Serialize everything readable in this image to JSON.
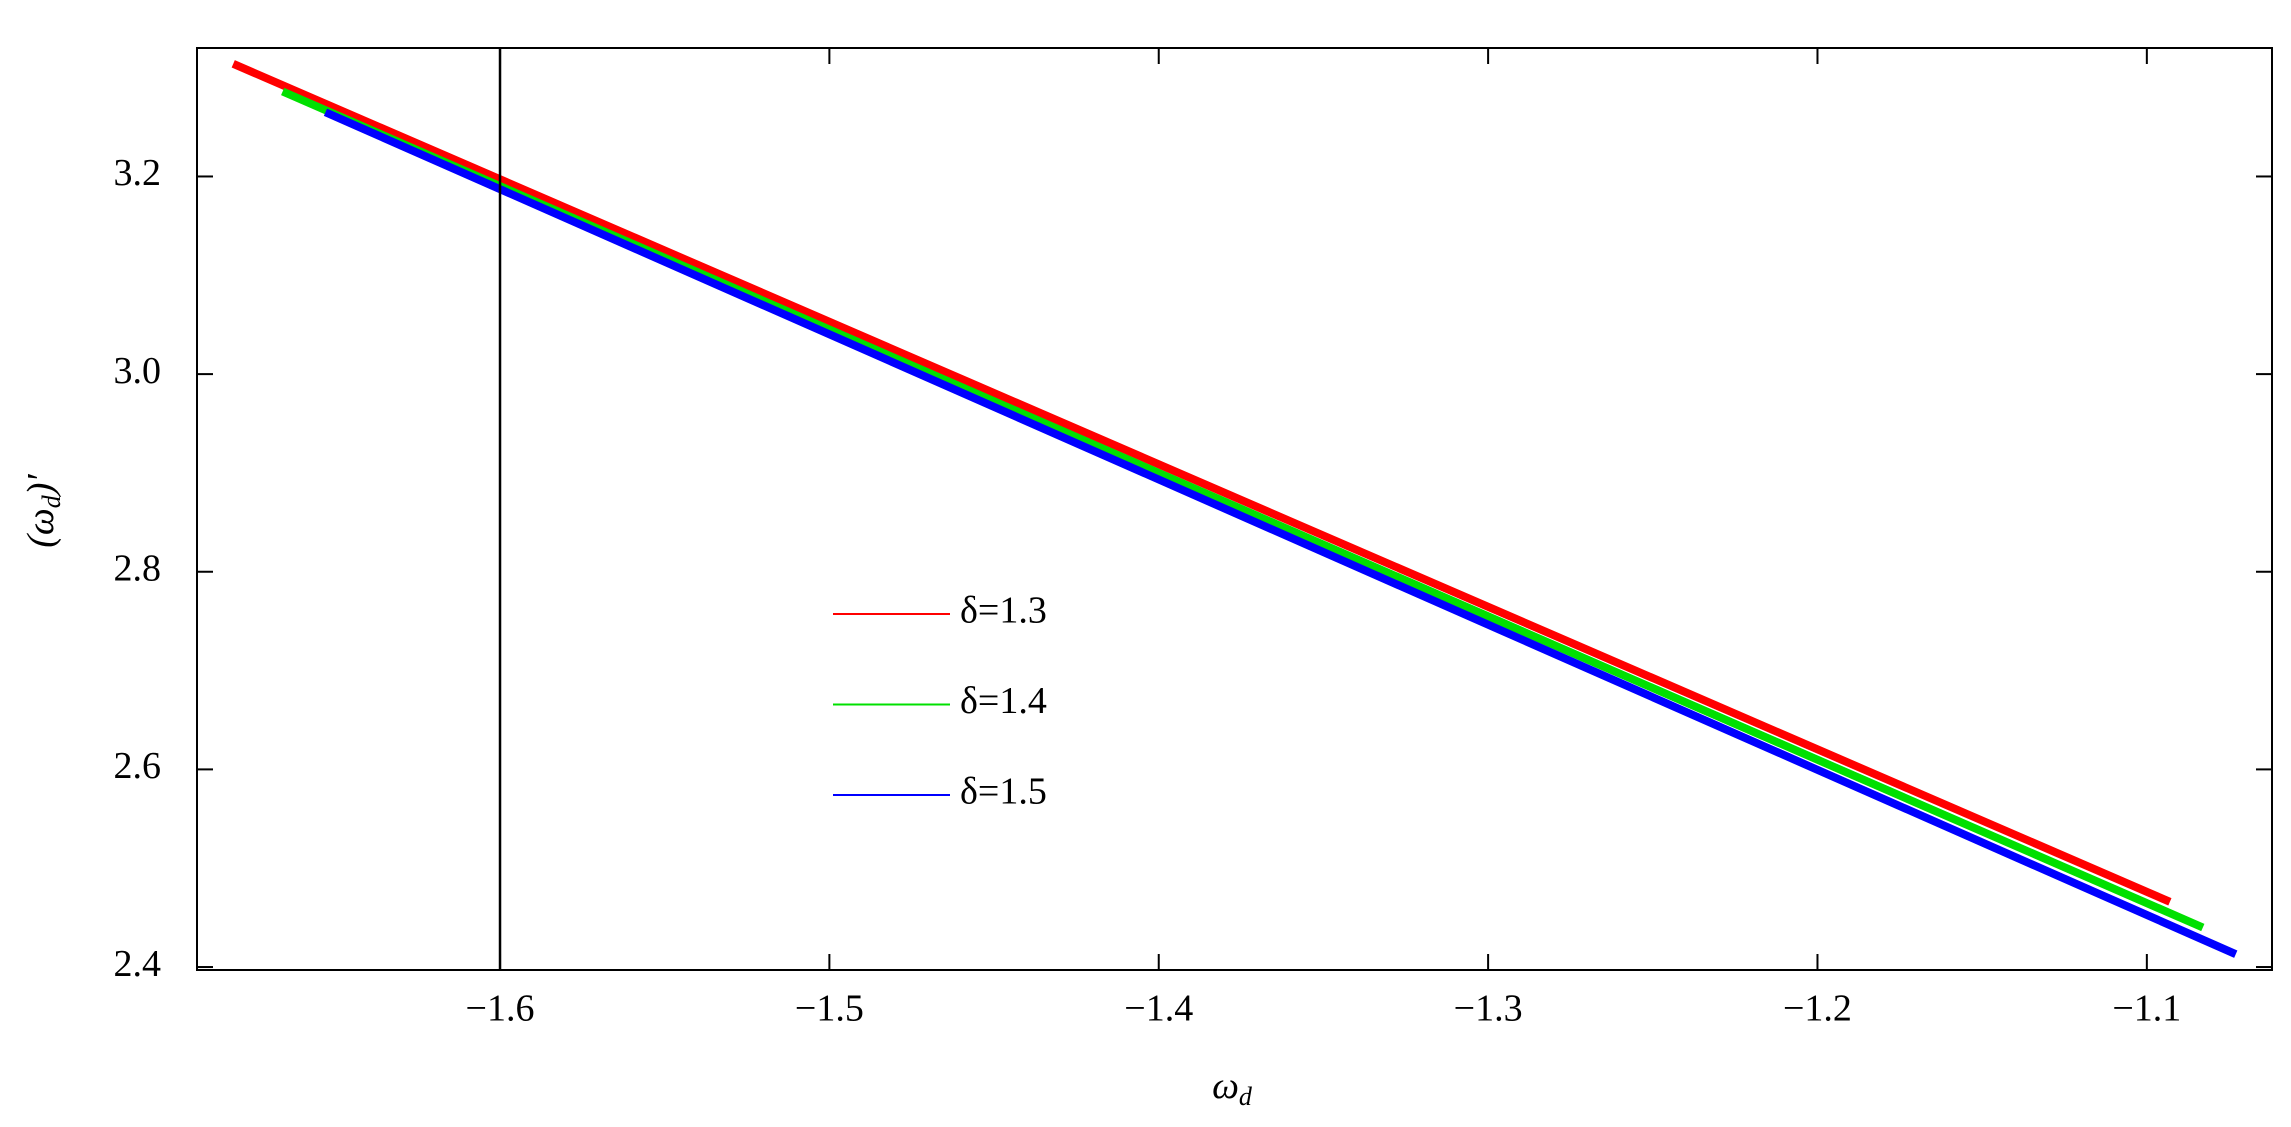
{
  "chart_data": {
    "type": "line",
    "x_label": [
      "ω",
      "d"
    ],
    "y_label": [
      "(ω",
      "d",
      ")′"
    ],
    "series": [
      {
        "name": "δ=1.3",
        "color": "#ff0000",
        "x": [
          -1.681,
          -1.093
        ],
        "values": [
          3.314,
          2.466
        ]
      },
      {
        "name": "δ=1.4",
        "color": "#00e000",
        "x": [
          -1.666,
          -1.083
        ],
        "values": [
          3.286,
          2.44
        ]
      },
      {
        "name": "δ=1.5",
        "color": "#0000ff",
        "x": [
          -1.653,
          -1.073
        ],
        "values": [
          3.265,
          2.413
        ]
      }
    ],
    "vlines": [
      -1.6
    ],
    "xlim": [
      -1.692,
      -1.062
    ],
    "ylim": [
      2.397,
      3.33
    ],
    "xticks": [
      {
        "value": -1.6,
        "label": "−1.6"
      },
      {
        "value": -1.5,
        "label": "−1.5"
      },
      {
        "value": -1.4,
        "label": "−1.4"
      },
      {
        "value": -1.3,
        "label": "−1.3"
      },
      {
        "value": -1.2,
        "label": "−1.2"
      },
      {
        "value": -1.1,
        "label": "−1.1"
      }
    ],
    "yticks": [
      2.4,
      2.6,
      2.8,
      {
        "value": 3,
        "label": "3.0"
      },
      3.2
    ],
    "grid": false
  }
}
